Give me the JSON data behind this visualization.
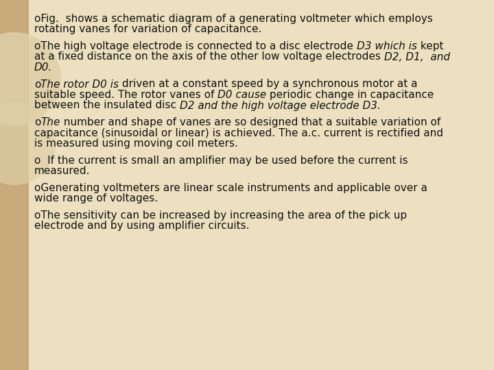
{
  "bg": "#ede0c0",
  "bar_color": "#c8aa7a",
  "text_color": "#111111",
  "fs": 11.0,
  "paragraphs": [
    {
      "segs": [
        [
          "oFig.  shows a schematic diagram of a generating voltmeter which employs\nrotating vanes for variation of capacitance.",
          false
        ]
      ]
    },
    {
      "segs": [
        [
          "oThe high voltage electrode is connected to a disc electrode ",
          false
        ],
        [
          "D3 which is",
          true
        ],
        [
          " kept\nat a fixed distance on the axis of the other low voltage electrodes ",
          false
        ],
        [
          "D2, D1,  and\nD0.",
          true
        ]
      ]
    },
    {
      "segs": [
        [
          "o",
          false
        ],
        [
          "The rotor D0 is",
          true
        ],
        [
          " driven at a constant speed by a synchronous motor at a\nsuitable speed. The rotor vanes of ",
          false
        ],
        [
          "D0 cause",
          true
        ],
        [
          " periodic change in capacitance\nbetween the insulated disc ",
          false
        ],
        [
          "D2 and the high voltage electrode D3.",
          true
        ]
      ]
    },
    {
      "segs": [
        [
          "o",
          false
        ],
        [
          "The",
          true
        ],
        [
          " number and shape of vanes are so designed that a suitable variation of\ncapacitance (sinusoidal or linear) is achieved. The a.c. current is rectified and\nis measured using moving coil meters.",
          false
        ]
      ]
    },
    {
      "segs": [
        [
          "o  If the current is small an amplifier may be used before the current is\nmeasured.",
          false
        ]
      ]
    },
    {
      "segs": [
        [
          "oGenerating voltmeters are linear scale instruments and applicable over a\nwide range of voltages.",
          false
        ]
      ]
    },
    {
      "segs": [
        [
          "oThe sensitivity can be increased by increasing the area of the pick up\nelectrode and by using amplifier circuits.",
          false
        ]
      ]
    }
  ]
}
